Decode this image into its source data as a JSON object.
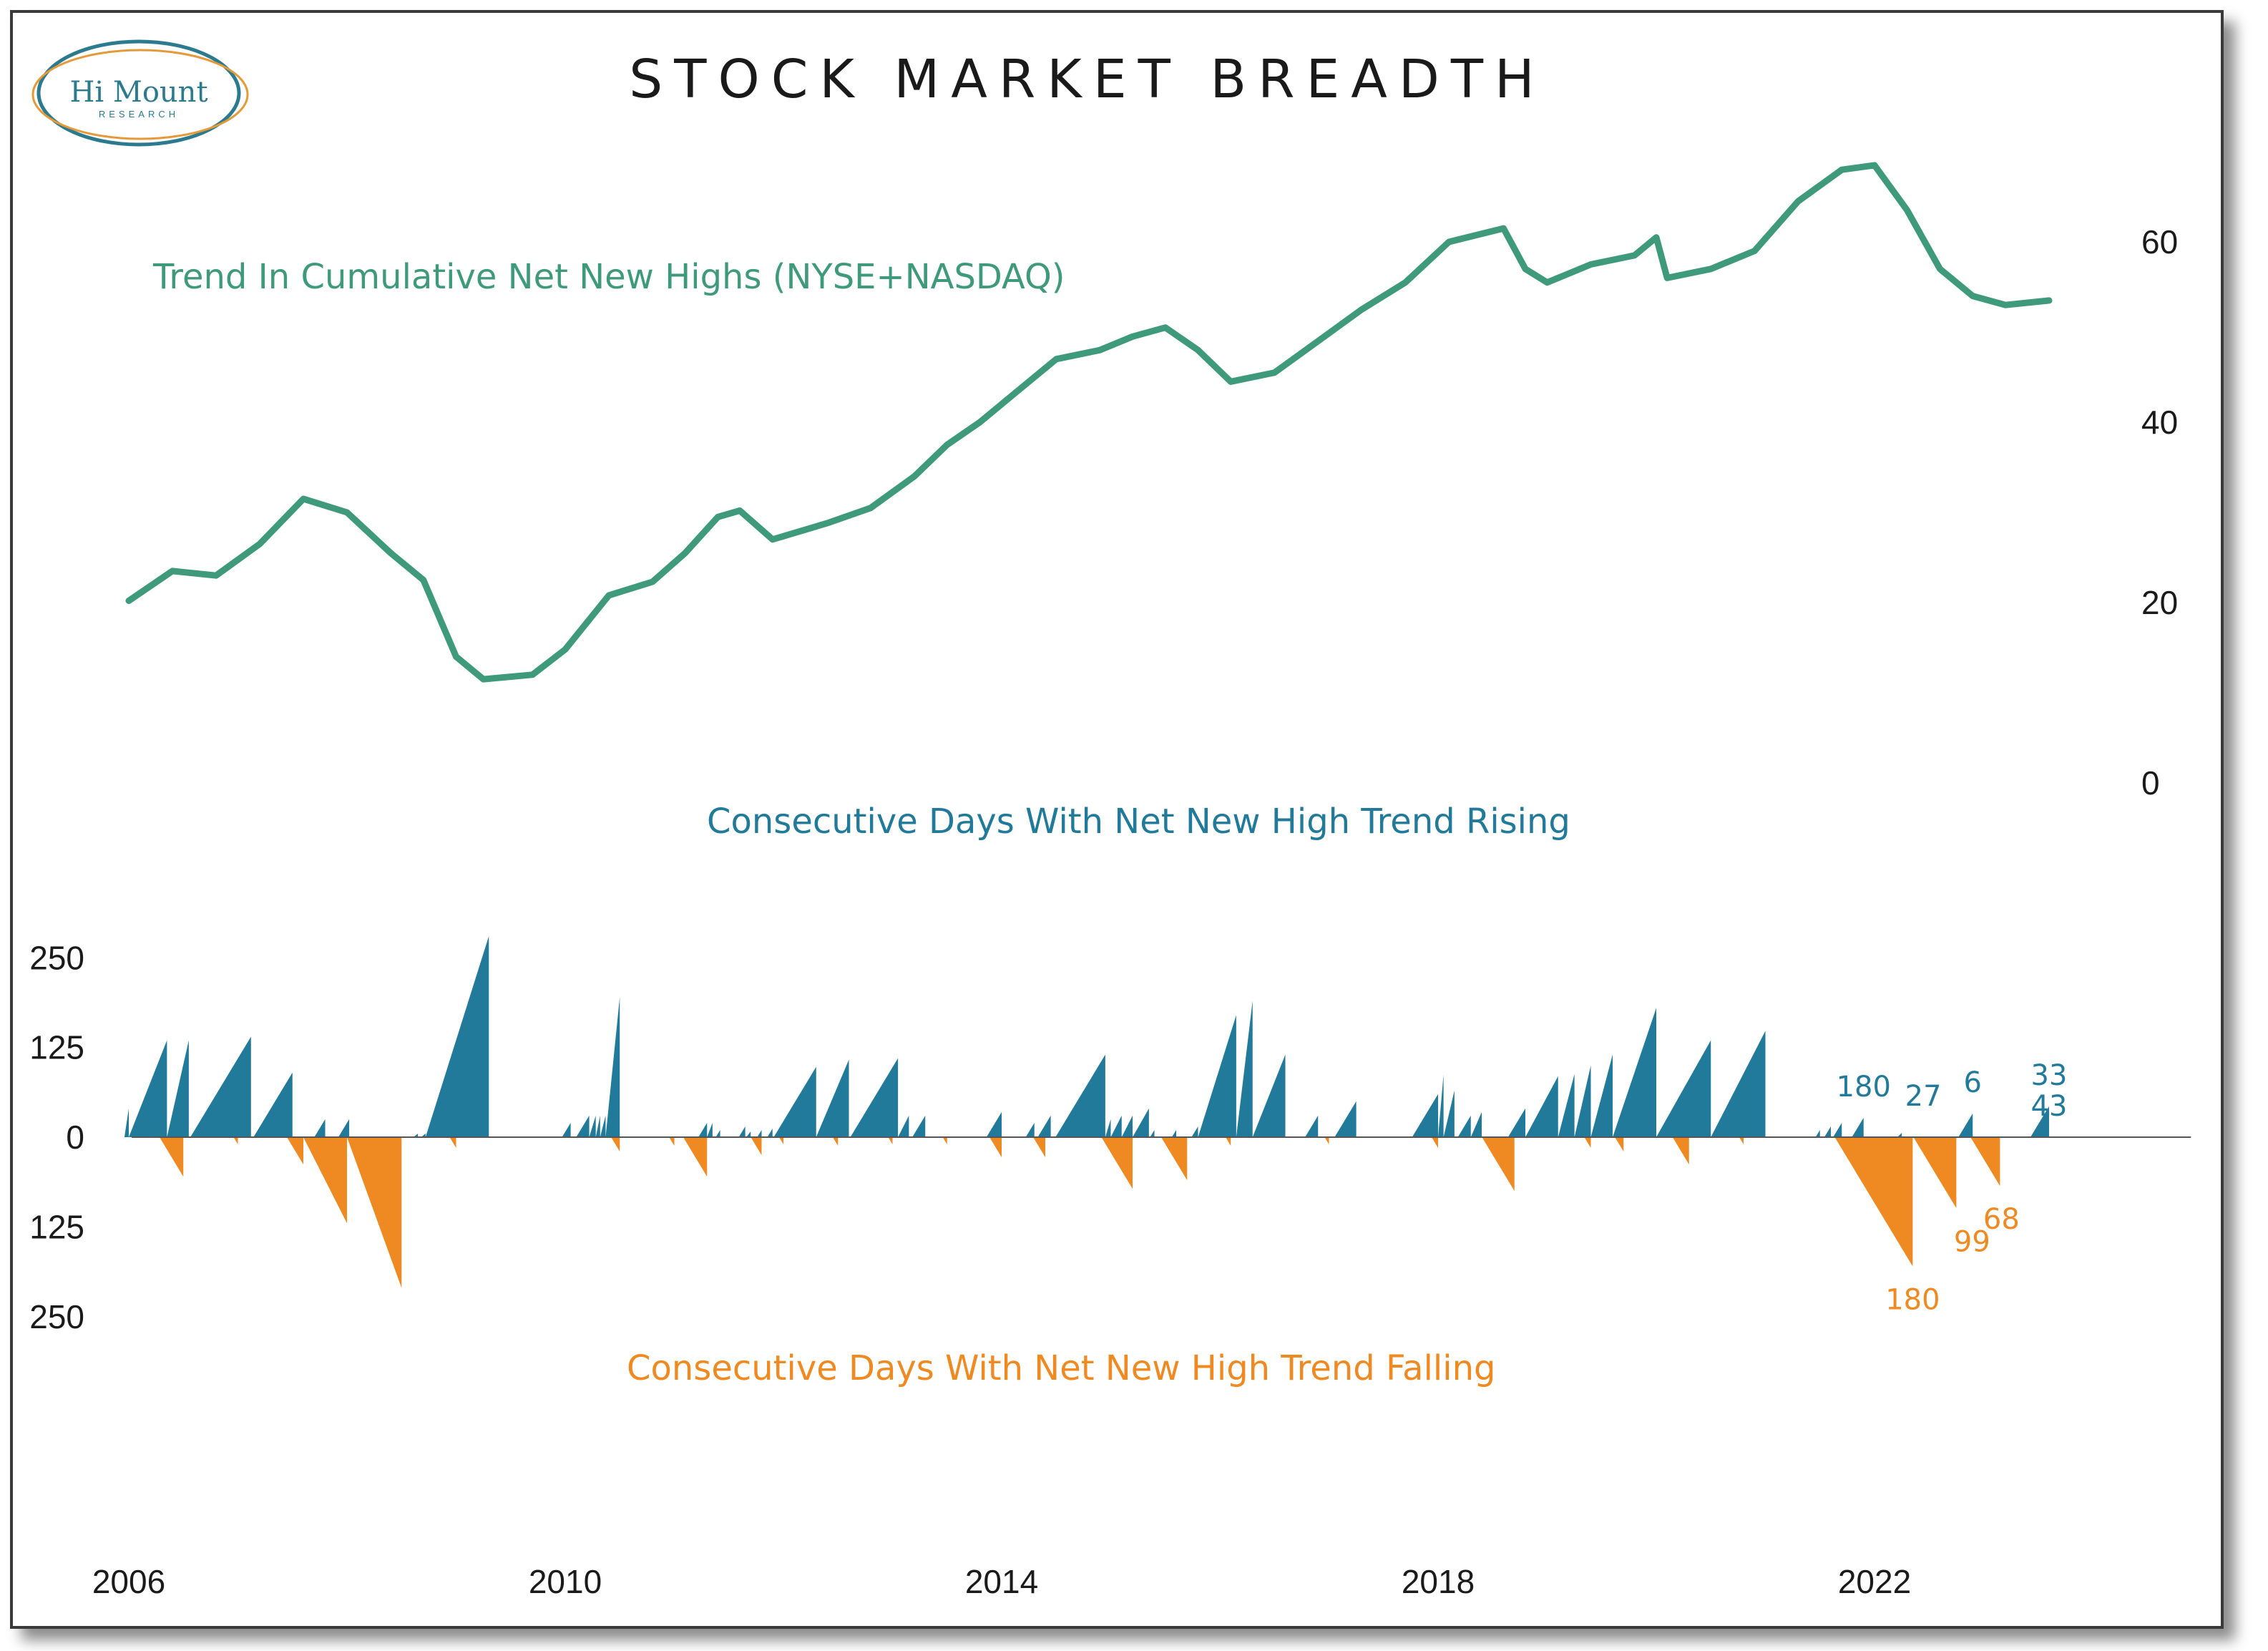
{
  "header": {
    "title": "STOCK MARKET BREADTH",
    "logo_name": "Hi Mount",
    "logo_sub": "RESEARCH"
  },
  "colors": {
    "trend_line": "#3f9a7c",
    "rising": "#227a9a",
    "falling": "#ef8a22",
    "axis": "#1a1a1a"
  },
  "annotations": {
    "trend_label": "Trend In Cumulative Net New Highs (NYSE+NASDAQ)",
    "rising_label": "Consecutive Days With Net New High Trend Rising",
    "falling_label": "Consecutive Days With Net New High Trend Falling"
  },
  "chart_data": [
    {
      "type": "line",
      "series": [
        {
          "x": [
            2006.0,
            2006.4,
            2006.8,
            2007.2,
            2007.6,
            2008.0,
            2008.4,
            2008.7,
            2009.0,
            2009.25,
            2009.7,
            2010.0,
            2010.4,
            2010.8,
            2011.1,
            2011.4,
            2011.6,
            2011.9,
            2012.4,
            2012.8,
            2013.2,
            2013.5,
            2013.8,
            2014.1,
            2014.5,
            2014.9,
            2015.2,
            2015.5,
            2015.8,
            2016.1,
            2016.5,
            2016.9,
            2017.3,
            2017.7,
            2018.1,
            2018.6,
            2018.8,
            2019.0,
            2019.4,
            2019.8,
            2020.0,
            2020.1,
            2020.5,
            2020.9,
            2021.3,
            2021.7,
            2022.0,
            2022.3,
            2022.6,
            2022.9,
            2023.2,
            2023.6
          ],
          "values": [
            20.2,
            23.5,
            23.0,
            26.5,
            31.5,
            30.0,
            25.5,
            22.5,
            14.0,
            11.5,
            12.0,
            14.8,
            20.8,
            22.3,
            25.5,
            29.5,
            30.2,
            27.0,
            28.8,
            30.5,
            34.0,
            37.5,
            40.0,
            43.0,
            47.0,
            48.0,
            49.5,
            50.5,
            48.0,
            44.5,
            45.5,
            49.0,
            52.5,
            55.5,
            60.0,
            61.5,
            57.0,
            55.5,
            57.5,
            58.5,
            60.5,
            56.0,
            57.0,
            59.0,
            64.5,
            68.0,
            68.5,
            63.5,
            57.0,
            54.0,
            53.0,
            53.5
          ]
        }
      ],
      "y_axis_ticks": [
        "60",
        "40",
        "20",
        "0"
      ],
      "ylim": [
        0,
        70
      ],
      "xlim": [
        2006,
        2024.5
      ],
      "y_axis_side": "right",
      "grid": false
    },
    {
      "type": "area",
      "series": [
        {
          "name": "Rising",
          "x": [
            2006.0,
            2006.35,
            2006.55,
            2007.12,
            2007.5,
            2007.8,
            2008.02,
            2008.65,
            2008.72,
            2009.3,
            2010.05,
            2010.22,
            2010.28,
            2010.32,
            2010.37,
            2010.5,
            2011.3,
            2011.35,
            2011.42,
            2011.65,
            2011.7,
            2011.8,
            2011.9,
            2012.3,
            2012.6,
            2013.05,
            2013.15,
            2013.3,
            2014.0,
            2014.3,
            2014.45,
            2014.95,
            2015.0,
            2015.1,
            2015.2,
            2015.35,
            2015.4,
            2015.6,
            2015.8,
            2016.15,
            2016.3,
            2016.6,
            2016.9,
            2017.25,
            2018.0,
            2018.05,
            2018.15,
            2018.3,
            2018.4,
            2018.8,
            2019.1,
            2019.25,
            2019.4,
            2019.6,
            2020.0,
            2020.5,
            2021.0,
            2021.5,
            2021.6,
            2021.7,
            2021.9,
            2022.25,
            2022.9,
            2023.6
          ],
          "values": [
            40,
            135,
            135,
            140,
            90,
            25,
            25,
            5,
            5,
            280,
            20,
            30,
            30,
            30,
            30,
            195,
            20,
            20,
            10,
            15,
            8,
            10,
            12,
            98,
            108,
            110,
            30,
            30,
            35,
            20,
            30,
            115,
            25,
            30,
            30,
            40,
            10,
            10,
            15,
            170,
            190,
            115,
            30,
            50,
            60,
            87,
            65,
            30,
            35,
            40,
            85,
            88,
            100,
            115,
            180,
            135,
            148,
            10,
            15,
            20,
            27,
            6,
            33,
            43
          ]
        },
        {
          "name": "Falling",
          "x": [
            2006.5,
            2007.0,
            2007.6,
            2008.0,
            2008.5,
            2009.0,
            2010.5,
            2011.0,
            2011.3,
            2011.8,
            2012.0,
            2012.5,
            2013.0,
            2013.5,
            2014.0,
            2014.4,
            2015.2,
            2015.7,
            2016.1,
            2017.0,
            2018.0,
            2018.7,
            2019.4,
            2019.7,
            2020.3,
            2020.8,
            2022.35,
            2022.75,
            2023.15
          ],
          "values": [
            55,
            10,
            38,
            120,
            210,
            15,
            20,
            12,
            55,
            25,
            10,
            12,
            10,
            10,
            28,
            28,
            72,
            60,
            12,
            10,
            15,
            75,
            15,
            20,
            38,
            10,
            180,
            99,
            68
          ]
        }
      ],
      "y_axis_ticks": [
        "250",
        "125",
        "0",
        "125",
        "250"
      ],
      "ylim": [
        -250,
        250
      ],
      "xlim": [
        2006,
        2024.5
      ],
      "x_axis_ticks": [
        "2006",
        "2010",
        "2014",
        "2018",
        "2022"
      ],
      "data_labels": [
        "180",
        "27",
        "6",
        "33",
        "43",
        "180",
        "99",
        "68"
      ],
      "grid": false
    }
  ]
}
